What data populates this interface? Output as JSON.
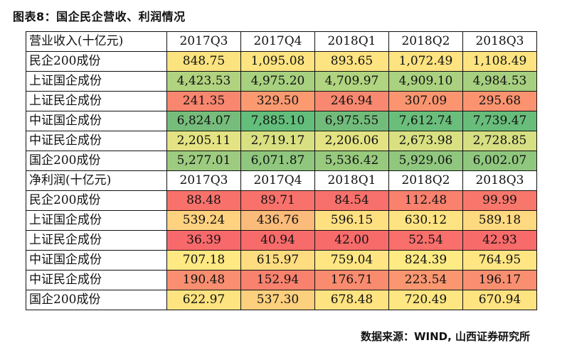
{
  "title": "图表8：国企民企营收、利润情况",
  "source": "数据来源：WIND, 山西证券研究所",
  "revenue": {
    "header": "营业收入(十亿元)",
    "periods": [
      "2017Q3",
      "2017Q4",
      "2018Q1",
      "2018Q2",
      "2018Q3"
    ],
    "rows": [
      {
        "label": "民企200成份",
        "values": [
          "848.75",
          "1,095.08",
          "893.65",
          "1,072.49",
          "1,108.49"
        ]
      },
      {
        "label": "上证国企成份",
        "values": [
          "4,423.53",
          "4,975.20",
          "4,709.97",
          "4,909.10",
          "4,984.53"
        ]
      },
      {
        "label": "上证民企成份",
        "values": [
          "241.35",
          "329.50",
          "246.94",
          "307.09",
          "295.68"
        ]
      },
      {
        "label": "中证国企成份",
        "values": [
          "6,824.07",
          "7,885.10",
          "6,975.55",
          "7,612.74",
          "7,739.47"
        ]
      },
      {
        "label": "中证民企成份",
        "values": [
          "2,205.11",
          "2,719.17",
          "2,206.06",
          "2,673.98",
          "2,728.85"
        ]
      },
      {
        "label": "国企200成份",
        "values": [
          "5,277.01",
          "6,071.87",
          "5,536.42",
          "5,929.06",
          "6,002.07"
        ]
      }
    ]
  },
  "profit": {
    "header": "净利润(十亿元)",
    "periods": [
      "2017Q3",
      "2017Q4",
      "2018Q1",
      "2018Q2",
      "2018Q3"
    ],
    "rows": [
      {
        "label": "民企200成份",
        "values": [
          "88.48",
          "89.71",
          "84.54",
          "112.48",
          "99.99"
        ]
      },
      {
        "label": "上证国企成份",
        "values": [
          "539.24",
          "436.76",
          "596.15",
          "630.12",
          "589.18"
        ]
      },
      {
        "label": "上证民企成份",
        "values": [
          "36.39",
          "40.94",
          "42.00",
          "52.54",
          "42.93"
        ]
      },
      {
        "label": "中证国企成份",
        "values": [
          "707.18",
          "615.97",
          "759.04",
          "824.39",
          "764.95"
        ]
      },
      {
        "label": "中证民企成份",
        "values": [
          "190.48",
          "152.94",
          "176.71",
          "223.54",
          "196.17"
        ]
      },
      {
        "label": "国企200成份",
        "values": [
          "622.97",
          "537.30",
          "678.48",
          "720.49",
          "670.94"
        ]
      }
    ]
  },
  "colors": {
    "revenue": [
      [
        "#fbe37f",
        "#fde480",
        "#fee381",
        "#fee381",
        "#fde480"
      ],
      [
        "#b1d37f",
        "#a7d07f",
        "#b0d47f",
        "#aad17f",
        "#a6cf7f"
      ],
      [
        "#f9866f",
        "#fb9a70",
        "#f98870",
        "#fa9570",
        "#fb9370"
      ],
      [
        "#76bd7b",
        "#63be7b",
        "#72bc7b",
        "#6abe7b",
        "#68bd7b"
      ],
      [
        "#e3e383",
        "#d8e082",
        "#e3e383",
        "#d8e082",
        "#d6df82"
      ],
      [
        "#9dcb7f",
        "#8fc77e",
        "#98ca7e",
        "#90c77e",
        "#8fc77e"
      ]
    ],
    "profit": [
      [
        "#f8716b",
        "#f8726b",
        "#f8706b",
        "#f9816d",
        "#f8776c"
      ],
      [
        "#fed27f",
        "#fbbb7a",
        "#fee081",
        "#fee382",
        "#fed980"
      ],
      [
        "#f8696b",
        "#f86b6b",
        "#f86b6b",
        "#f86f6b",
        "#f86b6b"
      ],
      [
        "#fee983",
        "#fedc80",
        "#ffe683",
        "#ffeb84",
        "#ffe683"
      ],
      [
        "#f98e70",
        "#f9826e",
        "#f98b6f",
        "#fa9771",
        "#f98f70"
      ],
      [
        "#fee481",
        "#fdd07e",
        "#fee381",
        "#fee782",
        "#fee381"
      ]
    ]
  }
}
